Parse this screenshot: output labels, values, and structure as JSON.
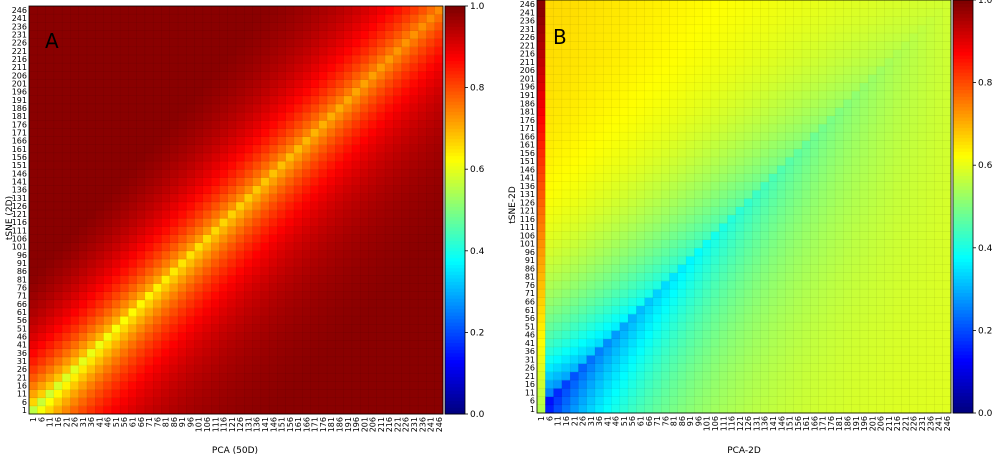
{
  "chart_data": [
    {
      "type": "heatmap",
      "panel_label": "A",
      "xlabel": "PCA (50D)",
      "ylabel": "tSNE (2D)",
      "x_ticks": [
        "1",
        "6",
        "11",
        "16",
        "21",
        "26",
        "31",
        "36",
        "41",
        "46",
        "51",
        "56",
        "61",
        "66",
        "71",
        "76",
        "81",
        "86",
        "91",
        "96",
        "101",
        "106",
        "111",
        "116",
        "121",
        "126",
        "131",
        "136",
        "141",
        "146",
        "151",
        "156",
        "161",
        "166",
        "171",
        "176",
        "181",
        "186",
        "191",
        "196",
        "201",
        "206",
        "211",
        "216",
        "221",
        "226",
        "231",
        "236",
        "241",
        "246"
      ],
      "y_ticks": [
        "1",
        "6",
        "11",
        "16",
        "21",
        "26",
        "31",
        "36",
        "41",
        "46",
        "51",
        "56",
        "61",
        "66",
        "71",
        "76",
        "81",
        "86",
        "91",
        "96",
        "101",
        "106",
        "111",
        "116",
        "121",
        "126",
        "131",
        "136",
        "141",
        "146",
        "151",
        "156",
        "161",
        "166",
        "171",
        "176",
        "181",
        "186",
        "191",
        "196",
        "201",
        "206",
        "211",
        "216",
        "221",
        "226",
        "231",
        "236",
        "241",
        "246"
      ],
      "colorbar": {
        "ticks": [
          "0.0",
          "0.2",
          "0.4",
          "0.6",
          "0.8",
          "1.0"
        ],
        "range": [
          0.0,
          1.0
        ],
        "colormap": "jet"
      },
      "pattern": "diagonal band of lower values (~0.55 at origin rising to ~0.75 at top-right), values approach 1.0 far from the diagonal, upper-left triangle higher than lower-right"
    },
    {
      "type": "heatmap",
      "panel_label": "B",
      "xlabel": "PCA-2D",
      "ylabel": "tSNE-2D",
      "x_ticks": [
        "1",
        "6",
        "11",
        "16",
        "21",
        "26",
        "31",
        "36",
        "41",
        "46",
        "51",
        "56",
        "61",
        "66",
        "71",
        "76",
        "81",
        "86",
        "91",
        "96",
        "101",
        "106",
        "111",
        "116",
        "121",
        "126",
        "131",
        "136",
        "141",
        "146",
        "151",
        "156",
        "161",
        "166",
        "171",
        "176",
        "181",
        "186",
        "191",
        "196",
        "201",
        "206",
        "211",
        "216",
        "221",
        "226",
        "231",
        "236",
        "241",
        "246"
      ],
      "y_ticks": [
        "1",
        "6",
        "11",
        "16",
        "21",
        "26",
        "31",
        "36",
        "41",
        "46",
        "51",
        "56",
        "61",
        "66",
        "71",
        "76",
        "81",
        "86",
        "91",
        "96",
        "101",
        "106",
        "111",
        "116",
        "121",
        "126",
        "131",
        "136",
        "141",
        "146",
        "151",
        "156",
        "161",
        "166",
        "171",
        "176",
        "181",
        "186",
        "191",
        "196",
        "201",
        "206",
        "211",
        "216",
        "221",
        "226",
        "231",
        "236",
        "241",
        "246"
      ],
      "colorbar": {
        "ticks": [
          "0.0",
          "0.2",
          "0.4",
          "0.6",
          "0.8",
          "1.0"
        ],
        "range": [
          0.0,
          1.0
        ],
        "colormap": "jet"
      },
      "pattern": "low values (~0.05-0.2) near origin along diagonal rising to ~0.55-0.65 elsewhere; first column near 1.0 at top; upper-left triangle warmer"
    }
  ]
}
